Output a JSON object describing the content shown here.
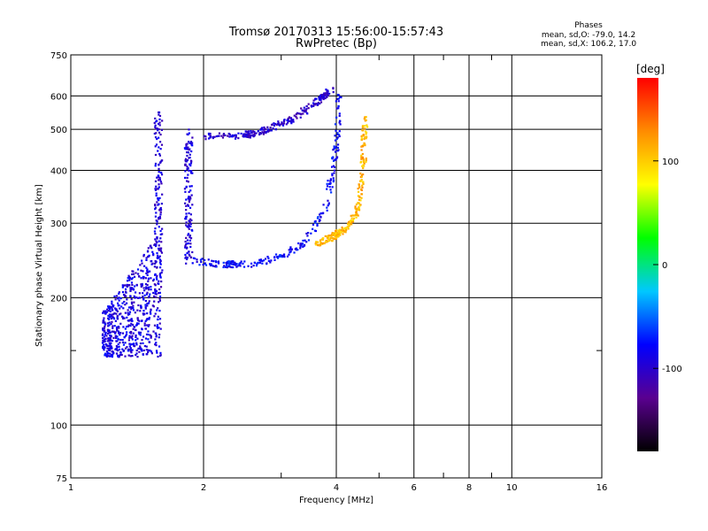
{
  "chart_data": {
    "type": "scatter",
    "title": "Tromsø 20170313 15:56:00-15:57:43",
    "subtitle": "RwPretec (Bp)",
    "xlabel": "Frequency [MHz]",
    "ylabel": "Stationary phase Virtual Height [km]",
    "x_scale": "log",
    "y_scale": "log",
    "xlim": [
      1,
      16
    ],
    "ylim": [
      75,
      750
    ],
    "x_ticks": [
      1,
      2,
      4,
      6,
      8,
      10,
      16
    ],
    "x_tick_labels": [
      "1",
      "2",
      "4",
      "6",
      "8",
      "10",
      "16"
    ],
    "x_minor_ticks": [
      3,
      5,
      7,
      9
    ],
    "y_ticks": [
      75,
      100,
      200,
      300,
      400,
      500,
      600,
      750
    ],
    "y_tick_labels": [
      "75",
      "100",
      "200",
      "300",
      "400",
      "500",
      "600",
      "750"
    ],
    "y_minor_ticks": [
      150
    ],
    "grid": true,
    "phases": {
      "heading": "Phases",
      "line_o": "mean, sd,O: -79.0, 14.2",
      "line_x": "mean, sd,X: 106.2, 17.0"
    },
    "colorbar": {
      "label": "[deg]",
      "range": [
        -180,
        180
      ],
      "ticks": [
        100,
        0,
        -100
      ],
      "tick_labels": [
        "100",
        "0",
        "-100"
      ],
      "colors": [
        "#000000",
        "#5a0090",
        "#0000ff",
        "#00c8ff",
        "#00ff00",
        "#ffff00",
        "#ff8c00",
        "#ff0000"
      ]
    },
    "series": [
      {
        "mode": "O",
        "color_by_phase": true,
        "traces": [
          {
            "shape": "cloud",
            "x_range": [
              1.18,
              1.6
            ],
            "y_range": [
              145,
              290
            ],
            "phase": -90
          },
          {
            "shape": "column",
            "x": 1.58,
            "y_range": [
              200,
              550
            ],
            "phase": -95
          },
          {
            "shape": "column",
            "x": 1.85,
            "y_range": [
              240,
              500
            ],
            "phase": -95
          },
          {
            "shape": "curve",
            "x": [
              1.9,
              2.2,
              2.6,
              3.0,
              3.4,
              3.8,
              4.0,
              4.05
            ],
            "y": [
              245,
              240,
              240,
              252,
              270,
              330,
              450,
              600
            ],
            "phase": -80
          },
          {
            "shape": "curve",
            "x": [
              2.0,
              2.5,
              2.8,
              3.2,
              3.6,
              3.9
            ],
            "y": [
              480,
              485,
              500,
              530,
              580,
              620
            ],
            "phase": -100
          }
        ]
      },
      {
        "mode": "X",
        "color_by_phase": true,
        "traces": [
          {
            "shape": "curve",
            "x": [
              3.6,
              3.9,
              4.2,
              4.45,
              4.6,
              4.65
            ],
            "y": [
              268,
              278,
              290,
              320,
              400,
              540
            ],
            "phase": 110
          }
        ]
      }
    ]
  }
}
